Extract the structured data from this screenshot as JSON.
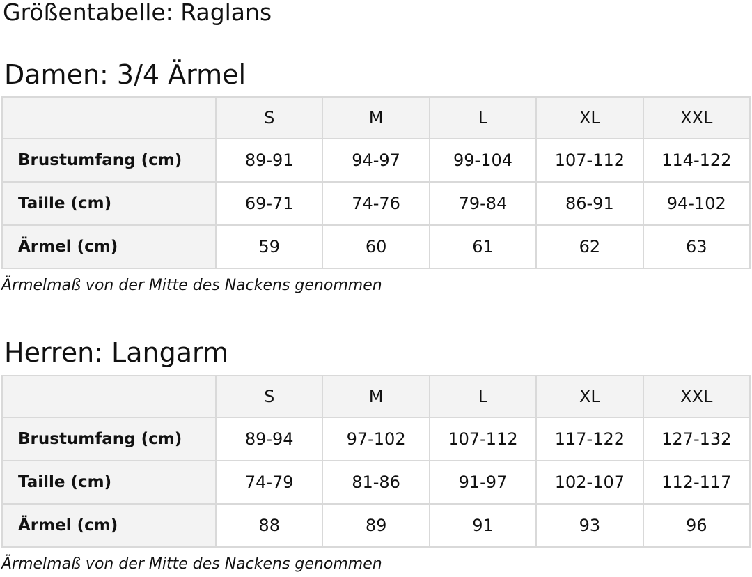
{
  "title": "Größentabelle: Raglans",
  "tables": [
    {
      "heading": "Damen: 3/4 Ärmel",
      "sizes": [
        "S",
        "M",
        "L",
        "XL",
        "XXL"
      ],
      "rows": [
        {
          "label": "Brustumfang (cm)",
          "values": [
            "89-91",
            "94-97",
            "99-104",
            "107-112",
            "114-122"
          ]
        },
        {
          "label": "Taille (cm)",
          "values": [
            "69-71",
            "74-76",
            "79-84",
            "86-91",
            "94-102"
          ]
        },
        {
          "label": "Ärmel (cm)",
          "values": [
            "59",
            "60",
            "61",
            "62",
            "63"
          ]
        }
      ],
      "note": "Ärmelmaß von der Mitte des Nackens genommen"
    },
    {
      "heading": "Herren: Langarm",
      "sizes": [
        "S",
        "M",
        "L",
        "XL",
        "XXL"
      ],
      "rows": [
        {
          "label": "Brustumfang (cm)",
          "values": [
            "89-94",
            "97-102",
            "107-112",
            "117-122",
            "127-132"
          ]
        },
        {
          "label": "Taille (cm)",
          "values": [
            "74-79",
            "81-86",
            "91-97",
            "102-107",
            "112-117"
          ]
        },
        {
          "label": "Ärmel (cm)",
          "values": [
            "88",
            "89",
            "91",
            "93",
            "96"
          ]
        }
      ],
      "note": "Ärmelmaß von der Mitte des Nackens genommen"
    }
  ]
}
